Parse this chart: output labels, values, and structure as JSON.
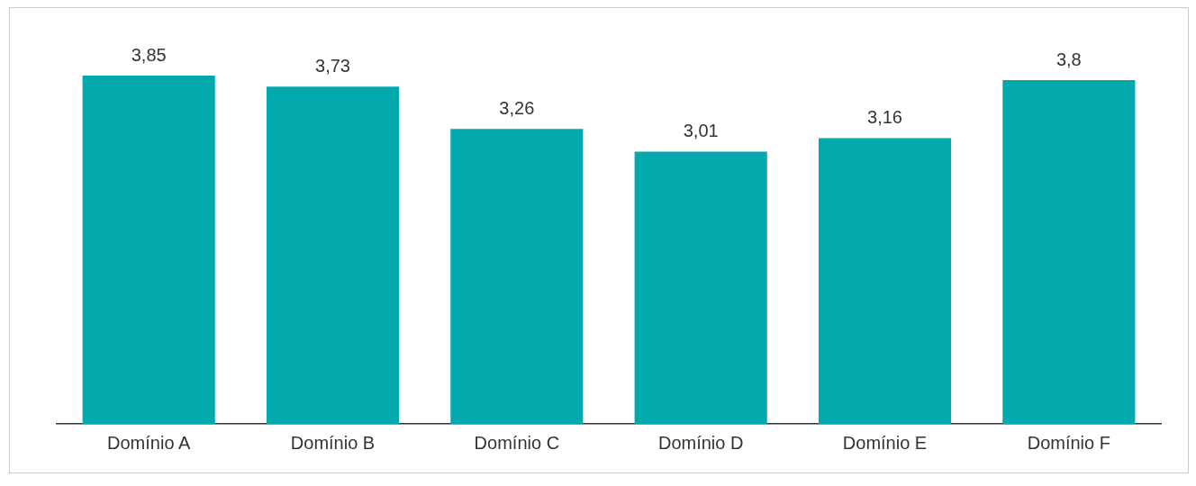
{
  "chart_data": {
    "type": "bar",
    "categories": [
      "Domínio A",
      "Domínio B",
      "Domínio C",
      "Domínio D",
      "Domínio E",
      "Domínio F"
    ],
    "values": [
      3.85,
      3.73,
      3.26,
      3.01,
      3.16,
      3.8
    ],
    "value_labels": [
      "3,85",
      "3,73",
      "3,26",
      "3,01",
      "3,16",
      "3,8"
    ],
    "color": "#03aaad",
    "grid": false
  }
}
